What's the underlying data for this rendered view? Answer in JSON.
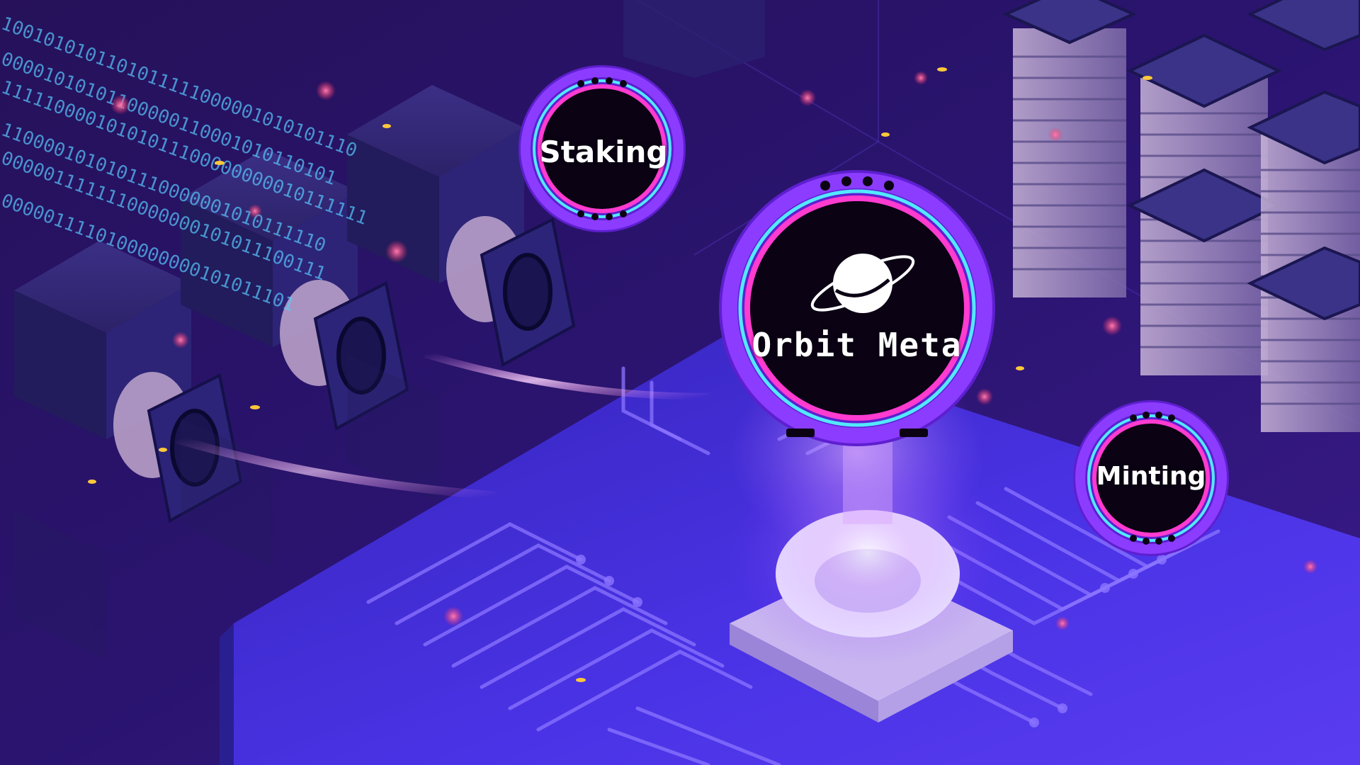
{
  "badges": {
    "orbit": {
      "label": "Orbit Meta"
    },
    "staking": {
      "label": "Staking"
    },
    "minting": {
      "label": "Minting"
    }
  },
  "binary_text": [
    "1001010101101011111000001010101110",
    "00001010101100000110001010110101",
    "11111000010101011100000000010111111",
    "1100001010101110000001010111110",
    "0000011111110000000101011100111",
    "0000011110100000000101011101"
  ],
  "colors": {
    "background": "#1a0d4a",
    "accent_magenta": "#ff3bd0",
    "accent_cyan": "#53e8ff",
    "badge_ring": "#7a2cff",
    "board": "#3b2bd9",
    "glow": "#ffffff"
  },
  "icons": {
    "logo": "planet-ring-icon"
  }
}
